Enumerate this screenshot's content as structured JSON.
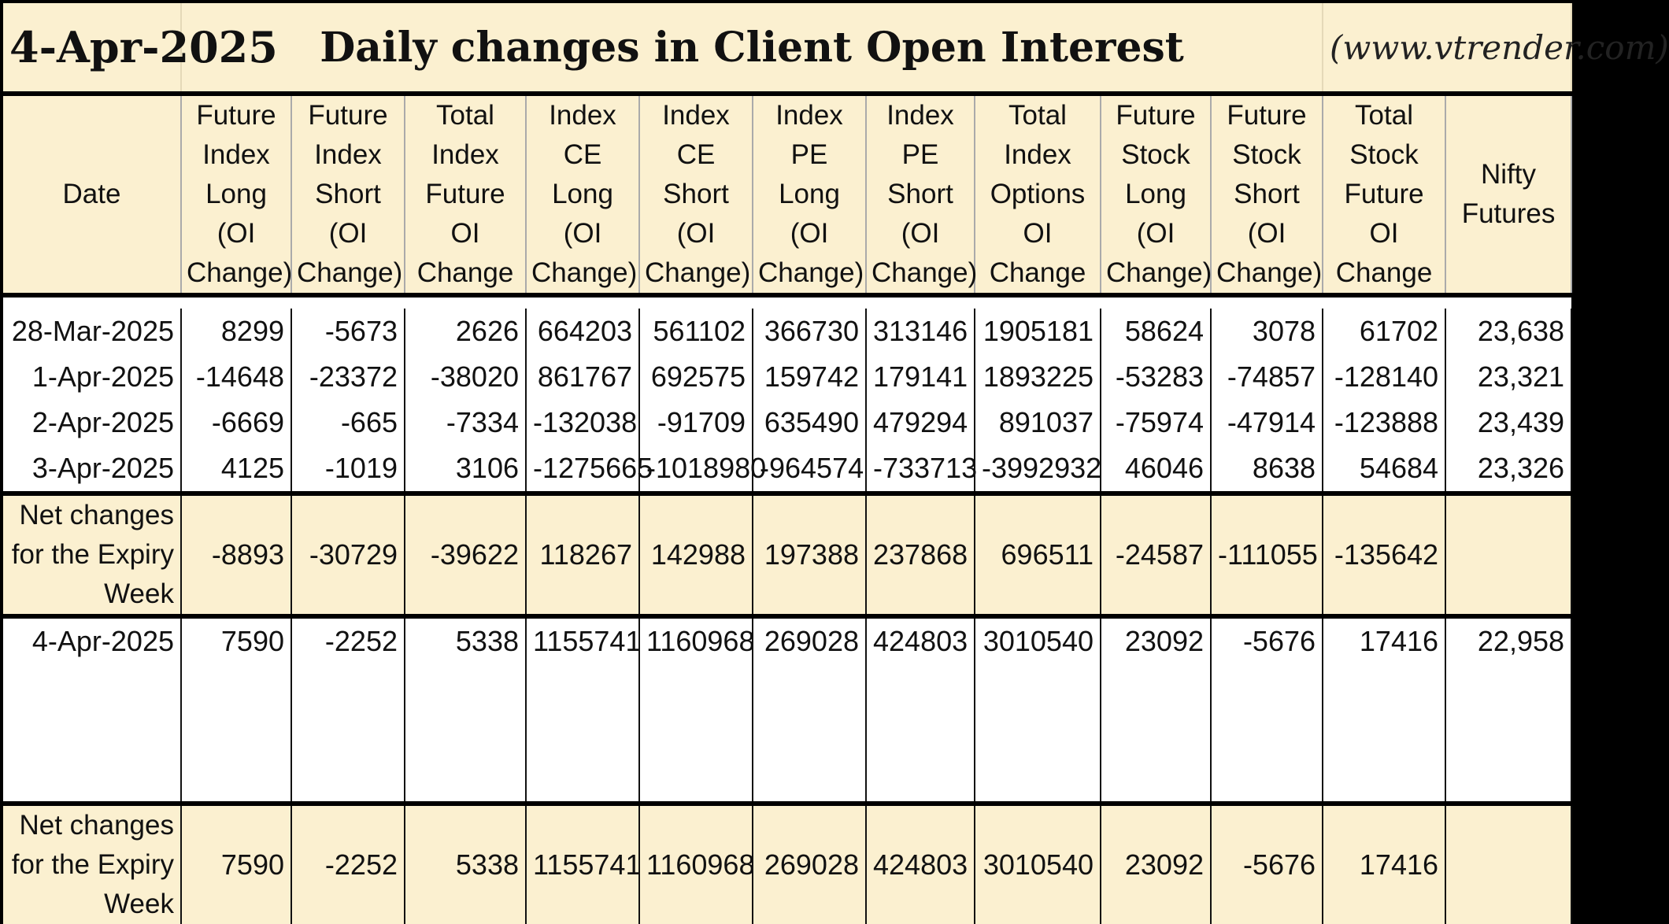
{
  "title": {
    "date": "4-Apr-2025",
    "heading": "Daily changes in Client Open Interest",
    "site": "(www.vtrender.com)"
  },
  "columns": [
    "Date",
    "Future Index Long (OI Change)",
    "Future Index Short (OI Change)",
    "Total Index Future OI Change",
    "Index CE Long (OI Change)",
    "Index CE Short (OI Change)",
    "Index PE Long (OI Change)",
    "Index PE Short (OI Change)",
    "Total Index Options OI Change",
    "Future Stock Long (OI Change)",
    "Future Stock Short (OI Change)",
    "Total Stock Future OI Change",
    "Nifty Futures"
  ],
  "week1": [
    [
      "28-Mar-2025",
      "8299",
      "-5673",
      "2626",
      "664203",
      "561102",
      "366730",
      "313146",
      "1905181",
      "58624",
      "3078",
      "61702",
      "23,638"
    ],
    [
      "1-Apr-2025",
      "-14648",
      "-23372",
      "-38020",
      "861767",
      "692575",
      "159742",
      "179141",
      "1893225",
      "-53283",
      "-74857",
      "-128140",
      "23,321"
    ],
    [
      "2-Apr-2025",
      "-6669",
      "-665",
      "-7334",
      "-132038",
      "-91709",
      "635490",
      "479294",
      "891037",
      "-75974",
      "-47914",
      "-123888",
      "23,439"
    ],
    [
      "3-Apr-2025",
      "4125",
      "-1019",
      "3106",
      "-1275665",
      "-1018980",
      "-964574",
      "-733713",
      "-3992932",
      "46046",
      "8638",
      "54684",
      "23,326"
    ]
  ],
  "week1_net": [
    "Net changes for the Expiry Week",
    "-8893",
    "-30729",
    "-39622",
    "118267",
    "142988",
    "197388",
    "237868",
    "696511",
    "-24587",
    "-111055",
    "-135642",
    ""
  ],
  "week2": [
    [
      "4-Apr-2025",
      "7590",
      "-2252",
      "5338",
      "1155741",
      "1160968",
      "269028",
      "424803",
      "3010540",
      "23092",
      "-5676",
      "17416",
      "22,958"
    ]
  ],
  "week2_net": [
    "Net changes for the Expiry Week",
    "7590",
    "-2252",
    "5338",
    "1155741",
    "1160968",
    "269028",
    "424803",
    "3010540",
    "23092",
    "-5676",
    "17416",
    ""
  ],
  "colors": {
    "header_bg": "#fbf0d0",
    "negative": "#d0151b",
    "positive": "#111111"
  }
}
